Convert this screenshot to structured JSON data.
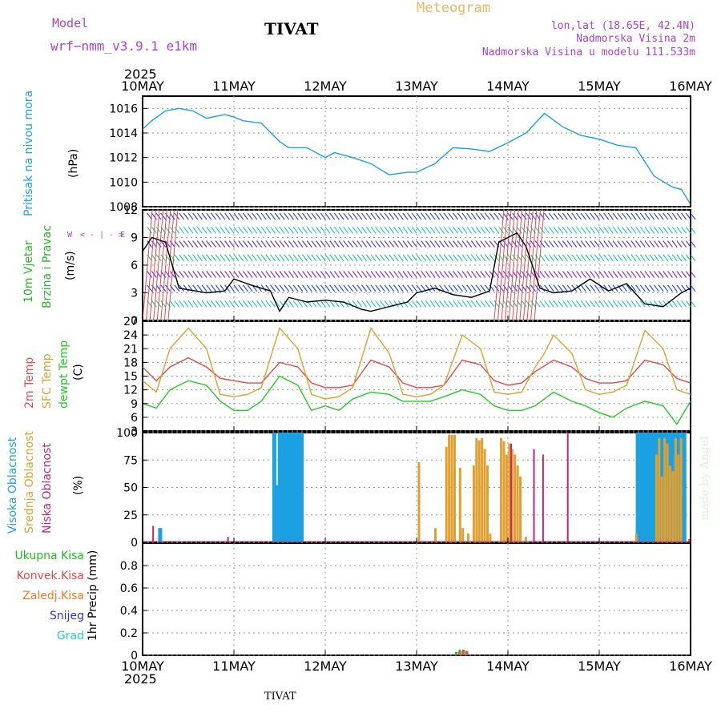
{
  "header": {
    "model_label": "Model",
    "model_name": "wrf−nmm_v3.9.1  e1km",
    "station": "TIVAT",
    "meteogram": "Meteogram",
    "lonlat": "lon,lat (18.65E, 42.4N)",
    "elev": "Nadmorska Visina 2m",
    "model_elev": "Nadmorska Visina u modelu 111.533m",
    "year_top": "2025",
    "year_bottom": "2025",
    "footer_station": "TIVAT",
    "made_by": "made by Angel"
  },
  "colors": {
    "pressure": "#1ba1e2",
    "wind_label": "#22bb22",
    "temp2m": "#e84848",
    "sfc": "#e0a030",
    "dewpt": "#22cc22",
    "cloud_high": "#1ba1e2",
    "cloud_mid": "#e0a030",
    "cloud_low": "#cc2277",
    "precip_total": "#22bb22",
    "precip_conv": "#e84848",
    "precip_frz": "#ff7722",
    "precip_snow": "#3333dd",
    "precip_hail": "#22cccc",
    "model_text": "#aa44cc",
    "meteogram_text": "#e8b860"
  },
  "panels": {
    "pressure": {
      "labels": [
        "Pritisak na nivou mora",
        "(hPa)"
      ]
    },
    "wind": {
      "labels": [
        "10m Vjetar",
        "Brzina i Pravac",
        "(m/s)"
      ],
      "compass": {
        "n": "N",
        "s": "S",
        "e": "E",
        "w": "W",
        "arrows": "< - | - >"
      }
    },
    "temp": {
      "labels": [
        "2m Temp",
        "SFC Temp",
        "dewpt Temp",
        "(C)"
      ]
    },
    "cloud": {
      "labels": [
        "Visoka Oblacnost",
        "Srednja Oblacnost",
        "Niska Oblacnost",
        "(%)"
      ]
    },
    "precip": {
      "labels": [
        "Ukupna Kisa",
        "Konvek.Kisa",
        "Zaledj.Kisa",
        "Snijeg",
        "Grad"
      ],
      "axis_label": "1hr Precip (mm)"
    }
  },
  "chart_data": [
    {
      "type": "line",
      "title": "",
      "ylabel": "(hPa)",
      "ylim": [
        1008,
        1017
      ],
      "yticks": [
        1008,
        1010,
        1012,
        1014,
        1016
      ],
      "xlim": [
        "10MAY",
        "16MAY"
      ],
      "xticks": [
        "10MAY",
        "11MAY",
        "12MAY",
        "13MAY",
        "14MAY",
        "15MAY",
        "16MAY"
      ],
      "series": [
        {
          "name": "Pritisak na nivou mora",
          "x": [
            0,
            0.1,
            0.25,
            0.4,
            0.55,
            0.7,
            0.9,
            1.0,
            1.1,
            1.3,
            1.5,
            1.6,
            1.8,
            2.0,
            2.1,
            2.3,
            2.5,
            2.7,
            2.9,
            3.0,
            3.2,
            3.4,
            3.6,
            3.8,
            4.0,
            4.2,
            4.4,
            4.6,
            4.8,
            5.0,
            5.2,
            5.4,
            5.6,
            5.8,
            5.9,
            6.0
          ],
          "y": [
            1014.3,
            1015.0,
            1015.8,
            1016.0,
            1015.8,
            1015.2,
            1015.5,
            1015.3,
            1015.0,
            1014.8,
            1013.3,
            1012.8,
            1012.8,
            1012.0,
            1012.4,
            1012.0,
            1011.5,
            1010.6,
            1010.8,
            1010.8,
            1011.5,
            1012.8,
            1012.7,
            1012.5,
            1013.2,
            1014.0,
            1015.6,
            1014.5,
            1013.8,
            1013.5,
            1013.0,
            1012.8,
            1010.5,
            1009.6,
            1009.4,
            1008.2
          ]
        }
      ]
    },
    {
      "type": "line",
      "title": "",
      "ylabel": "(m/s)",
      "ylim": [
        0,
        12
      ],
      "yticks": [
        0,
        3,
        6,
        9,
        12
      ],
      "xlim": [
        "10MAY",
        "16MAY"
      ],
      "xticks": [
        "10MAY",
        "11MAY",
        "12MAY",
        "13MAY",
        "14MAY",
        "15MAY",
        "16MAY"
      ],
      "series": [
        {
          "name": "",
          "x": [
            0,
            0.1,
            0.25,
            0.4,
            0.7,
            0.9,
            1.0,
            1.2,
            1.4,
            1.5,
            1.6,
            1.8,
            2.0,
            2.2,
            2.4,
            2.5,
            2.7,
            2.9,
            3.0,
            3.2,
            3.4,
            3.6,
            3.8,
            3.9,
            4.1,
            4.2,
            4.35,
            4.5,
            4.7,
            4.9,
            5.1,
            5.3,
            5.5,
            5.7,
            5.9,
            6.0
          ],
          "y": [
            7.5,
            9.0,
            8.5,
            3.5,
            3.0,
            3.2,
            4.5,
            3.8,
            3.2,
            1.0,
            2.5,
            2.0,
            2.2,
            2.0,
            1.2,
            1.0,
            1.5,
            2.0,
            3.0,
            3.5,
            2.8,
            2.5,
            3.2,
            8.5,
            9.5,
            8.0,
            3.5,
            3.0,
            3.2,
            4.5,
            3.2,
            4.0,
            1.8,
            1.5,
            3.0,
            3.5
          ]
        }
      ]
    },
    {
      "type": "line",
      "title": "",
      "ylabel": "(C)",
      "ylim": [
        3,
        27
      ],
      "yticks": [
        3,
        6,
        9,
        12,
        15,
        18,
        21,
        24,
        27
      ],
      "xlim": [
        "10MAY",
        "16MAY"
      ],
      "xticks": [
        "10MAY",
        "11MAY",
        "12MAY",
        "13MAY",
        "14MAY",
        "15MAY",
        "16MAY"
      ],
      "series": [
        {
          "name": "2m Temp",
          "x": [
            0,
            0.15,
            0.3,
            0.5,
            0.7,
            0.85,
            1.0,
            1.15,
            1.3,
            1.5,
            1.7,
            1.85,
            2.0,
            2.15,
            2.3,
            2.5,
            2.7,
            2.85,
            3.0,
            3.15,
            3.3,
            3.5,
            3.7,
            3.85,
            4.0,
            4.15,
            4.3,
            4.5,
            4.7,
            4.85,
            5.0,
            5.15,
            5.3,
            5.5,
            5.7,
            5.85,
            6.0
          ],
          "y": [
            17,
            14,
            17,
            19,
            17,
            14.5,
            14,
            13.5,
            13.5,
            18,
            17,
            13.5,
            12.5,
            12.5,
            13,
            18.5,
            17,
            13.5,
            12.5,
            12.5,
            13,
            18.5,
            17.5,
            14,
            13,
            13.5,
            16,
            18.5,
            17,
            14.5,
            13.5,
            13.5,
            14,
            18.5,
            17.5,
            14.5,
            13.5
          ]
        },
        {
          "name": "SFC Temp",
          "x": [
            0,
            0.15,
            0.3,
            0.5,
            0.7,
            0.85,
            1.0,
            1.15,
            1.3,
            1.5,
            1.7,
            1.85,
            2.0,
            2.15,
            2.3,
            2.5,
            2.7,
            2.85,
            3.0,
            3.15,
            3.3,
            3.5,
            3.7,
            3.85,
            4.0,
            4.15,
            4.3,
            4.4,
            4.5,
            4.7,
            4.85,
            5.0,
            5.15,
            5.3,
            5.5,
            5.7,
            5.85,
            6.0
          ],
          "y": [
            14,
            11.5,
            21,
            25.5,
            21,
            11,
            10.5,
            11,
            12.5,
            25.5,
            21,
            11,
            10,
            10.5,
            12.5,
            25.5,
            20,
            11,
            10.5,
            11,
            13,
            24,
            21,
            11.5,
            11,
            11.5,
            17,
            20,
            24,
            20,
            12,
            11,
            11.5,
            13,
            25,
            21,
            12,
            11
          ]
        },
        {
          "name": "dewpt Temp",
          "x": [
            0,
            0.15,
            0.3,
            0.5,
            0.7,
            0.85,
            1.0,
            1.15,
            1.3,
            1.5,
            1.7,
            1.85,
            2.0,
            2.15,
            2.3,
            2.5,
            2.7,
            2.85,
            3.0,
            3.15,
            3.3,
            3.5,
            3.7,
            3.85,
            4.0,
            4.15,
            4.3,
            4.5,
            4.7,
            4.85,
            5.0,
            5.15,
            5.3,
            5.5,
            5.7,
            5.85,
            6.0
          ],
          "y": [
            9,
            8,
            12,
            14,
            13,
            9.5,
            7.5,
            7.5,
            9.5,
            15,
            13,
            7.5,
            8.5,
            7.5,
            10,
            11.5,
            11,
            9.5,
            9.5,
            9.5,
            10.5,
            12,
            11,
            8.5,
            7.5,
            7.5,
            8.5,
            11.5,
            9.5,
            8.5,
            7.0,
            6.0,
            8.0,
            9.5,
            8.5,
            4.5,
            9.5
          ]
        }
      ]
    },
    {
      "type": "bar",
      "title": "",
      "ylabel": "(%)",
      "ylim": [
        0,
        100
      ],
      "yticks": [
        0,
        25,
        50,
        75,
        100
      ],
      "xlim": [
        "10MAY",
        "16MAY"
      ],
      "xticks": [
        "10MAY",
        "11MAY",
        "12MAY",
        "13MAY",
        "14MAY",
        "15MAY",
        "16MAY"
      ],
      "series": [
        {
          "name": "Visoka Oblacnost",
          "x": [
            0.17,
            1.42,
            1.45,
            1.48,
            1.51,
            1.54,
            1.57,
            1.6,
            1.63,
            1.66,
            1.69,
            1.72,
            5.4,
            5.43,
            5.46,
            5.49,
            5.52,
            5.55,
            5.58,
            5.61,
            5.64,
            5.67,
            5.7,
            5.73,
            5.76,
            5.79,
            5.82,
            5.85,
            5.88,
            5.91
          ],
          "y": [
            13,
            100,
            52,
            100,
            100,
            100,
            100,
            100,
            100,
            100,
            100,
            100,
            100,
            100,
            100,
            100,
            100,
            100,
            100,
            100,
            100,
            100,
            100,
            100,
            100,
            100,
            100,
            100,
            100,
            100
          ]
        },
        {
          "name": "Srednja Oblacnost",
          "x": [
            3.0,
            3.18,
            3.3,
            3.33,
            3.36,
            3.39,
            3.45,
            3.48,
            3.54,
            3.6,
            3.63,
            3.66,
            3.69,
            3.72,
            3.75,
            3.78,
            3.9,
            3.93,
            3.96,
            3.99,
            4.02,
            4.05,
            4.08,
            4.11,
            4.17,
            5.38,
            5.6,
            5.63,
            5.66,
            5.69,
            5.72,
            5.75,
            5.78,
            5.81,
            5.84,
            5.87
          ],
          "y": [
            73,
            13,
            87,
            98,
            98,
            98,
            68,
            13,
            8,
            70,
            95,
            93,
            95,
            85,
            70,
            8,
            95,
            92,
            80,
            90,
            85,
            80,
            70,
            60,
            5,
            8,
            80,
            95,
            60,
            95,
            90,
            70,
            65,
            95,
            80,
            95
          ]
        },
        {
          "name": "Niska Oblacnost",
          "x": [
            0.08,
            0.9,
            4.25,
            4.0,
            4.35,
            4.62,
            5.95
          ],
          "y": [
            15,
            5,
            85,
            90,
            80,
            100,
            3
          ]
        }
      ]
    },
    {
      "type": "bar",
      "title": "",
      "ylabel": "1hr Precip (mm)",
      "ylim": [
        0,
        1.0
      ],
      "yticks": [
        0,
        0.2,
        0.4,
        0.6,
        0.8
      ],
      "xlim": [
        "10MAY",
        "16MAY"
      ],
      "xticks": [
        "10MAY",
        "11MAY",
        "12MAY",
        "13MAY",
        "14MAY",
        "15MAY",
        "16MAY"
      ],
      "series": [
        {
          "name": "Ukupna Kisa",
          "x": [
            3.42,
            3.46,
            3.5,
            3.54
          ],
          "y": [
            0.03,
            0.05,
            0.05,
            0.04
          ]
        },
        {
          "name": "Konvek.Kisa",
          "x": [
            3.44,
            3.48,
            3.52
          ],
          "y": [
            0.03,
            0.04,
            0.04
          ]
        }
      ]
    }
  ]
}
